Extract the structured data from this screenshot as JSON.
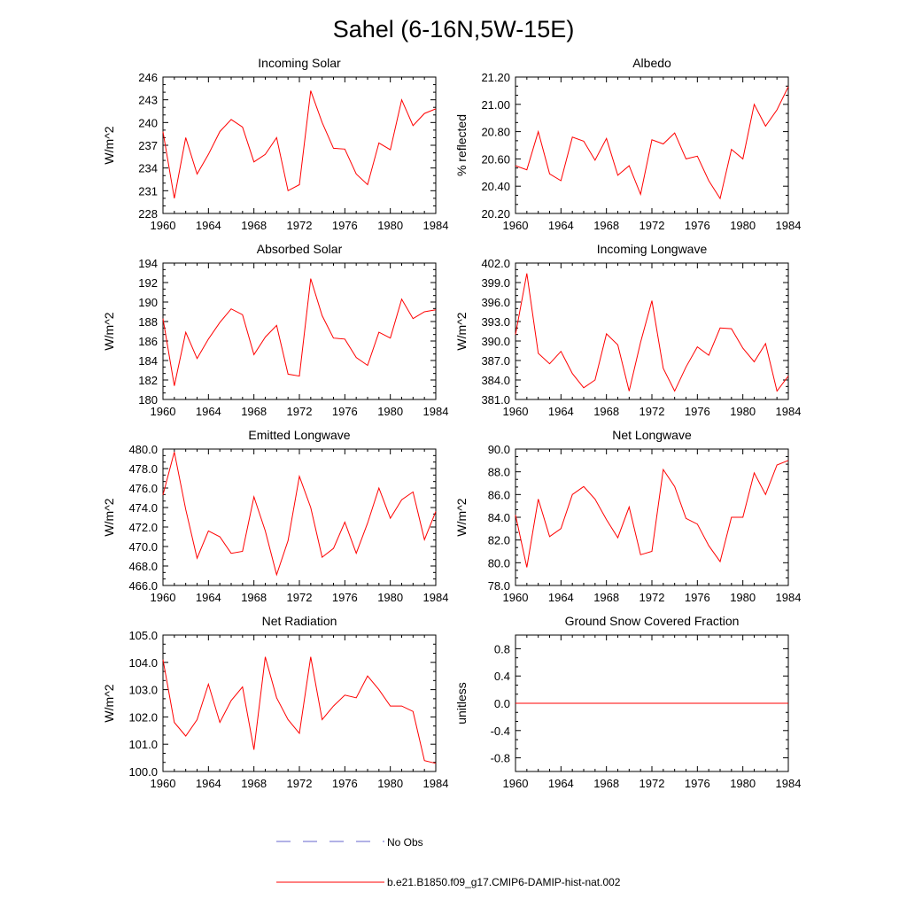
{
  "figure_title": "Sahel (6-16N,5W-15E)",
  "colors": {
    "model": "#ff0000",
    "obs": "#6666cc",
    "axis": "#000000"
  },
  "legend": {
    "obs_label": "No Obs",
    "model_label": "b.e21.B1850.f09_g17.CMIP6-DAMIP-hist-nat.002"
  },
  "chart_data": [
    {
      "type": "line",
      "title": "Incoming Solar",
      "xlabel": "",
      "ylabel": "W/m^2",
      "xlim": [
        1960,
        1984
      ],
      "ylim": [
        228,
        246
      ],
      "xticks": [
        "1960",
        "1964",
        "1968",
        "1972",
        "1976",
        "1980",
        "1984"
      ],
      "yticks": [
        "228",
        "231",
        "234",
        "237",
        "240",
        "243",
        "246"
      ],
      "x": [
        1960,
        1961,
        1962,
        1963,
        1964,
        1965,
        1966,
        1967,
        1968,
        1969,
        1970,
        1971,
        1972,
        1973,
        1974,
        1975,
        1976,
        1977,
        1978,
        1979,
        1980,
        1981,
        1982,
        1983,
        1984
      ],
      "series": [
        {
          "name": "b.e21.B1850.f09_g17.CMIP6-DAMIP-hist-nat.002",
          "values": [
            238.8,
            230.0,
            238.0,
            233.2,
            235.8,
            238.8,
            240.4,
            239.4,
            234.8,
            235.8,
            238.0,
            231.0,
            231.8,
            244.2,
            240.0,
            236.6,
            236.5,
            233.2,
            231.8,
            237.3,
            236.4,
            243.0,
            239.6,
            241.2,
            241.8
          ]
        }
      ]
    },
    {
      "type": "line",
      "title": "Albedo",
      "xlabel": "",
      "ylabel": "% reflected",
      "xlim": [
        1960,
        1984
      ],
      "ylim": [
        20.2,
        21.2
      ],
      "xticks": [
        "1960",
        "1964",
        "1968",
        "1972",
        "1976",
        "1980",
        "1984"
      ],
      "yticks": [
        "20.20",
        "20.40",
        "20.60",
        "20.80",
        "21.00",
        "21.20"
      ],
      "x": [
        1960,
        1961,
        1962,
        1963,
        1964,
        1965,
        1966,
        1967,
        1968,
        1969,
        1970,
        1971,
        1972,
        1973,
        1974,
        1975,
        1976,
        1977,
        1978,
        1979,
        1980,
        1981,
        1982,
        1983,
        1984
      ],
      "series": [
        {
          "name": "b.e21.B1850.f09_g17.CMIP6-DAMIP-hist-nat.002",
          "values": [
            20.55,
            20.52,
            20.8,
            20.49,
            20.44,
            20.76,
            20.73,
            20.59,
            20.75,
            20.48,
            20.55,
            20.34,
            20.74,
            20.71,
            20.79,
            20.6,
            20.62,
            20.44,
            20.31,
            20.67,
            20.6,
            21.0,
            20.84,
            20.96,
            21.13
          ]
        }
      ]
    },
    {
      "type": "line",
      "title": "Absorbed Solar",
      "xlabel": "",
      "ylabel": "W/m^2",
      "xlim": [
        1960,
        1984
      ],
      "ylim": [
        180,
        194
      ],
      "xticks": [
        "1960",
        "1964",
        "1968",
        "1972",
        "1976",
        "1980",
        "1984"
      ],
      "yticks": [
        "180",
        "182",
        "184",
        "186",
        "188",
        "190",
        "192",
        "194"
      ],
      "x": [
        1960,
        1961,
        1962,
        1963,
        1964,
        1965,
        1966,
        1967,
        1968,
        1969,
        1970,
        1971,
        1972,
        1973,
        1974,
        1975,
        1976,
        1977,
        1978,
        1979,
        1980,
        1981,
        1982,
        1983,
        1984
      ],
      "series": [
        {
          "name": "b.e21.B1850.f09_g17.CMIP6-DAMIP-hist-nat.002",
          "values": [
            188.3,
            181.4,
            186.9,
            184.2,
            186.2,
            187.9,
            189.3,
            188.7,
            184.6,
            186.4,
            187.6,
            182.6,
            182.4,
            192.4,
            188.6,
            186.3,
            186.2,
            184.3,
            183.5,
            186.9,
            186.3,
            190.3,
            188.3,
            189.0,
            189.2
          ]
        }
      ]
    },
    {
      "type": "line",
      "title": "Incoming Longwave",
      "xlabel": "",
      "ylabel": "W/m^2",
      "xlim": [
        1960,
        1984
      ],
      "ylim": [
        381,
        402
      ],
      "xticks": [
        "1960",
        "1964",
        "1968",
        "1972",
        "1976",
        "1980",
        "1984"
      ],
      "yticks": [
        "381.0",
        "384.0",
        "387.0",
        "390.0",
        "393.0",
        "396.0",
        "399.0",
        "402.0"
      ],
      "x": [
        1960,
        1961,
        1962,
        1963,
        1964,
        1965,
        1966,
        1967,
        1968,
        1969,
        1970,
        1971,
        1972,
        1973,
        1974,
        1975,
        1976,
        1977,
        1978,
        1979,
        1980,
        1981,
        1982,
        1983,
        1984
      ],
      "series": [
        {
          "name": "b.e21.B1850.f09_g17.CMIP6-DAMIP-hist-nat.002",
          "values": [
            391.0,
            400.4,
            388.1,
            386.5,
            388.4,
            385.0,
            382.8,
            384.0,
            391.1,
            389.4,
            382.3,
            389.8,
            396.2,
            385.8,
            382.3,
            386.0,
            389.1,
            387.8,
            392.0,
            391.9,
            388.9,
            386.8,
            389.6,
            382.3,
            384.6
          ]
        }
      ]
    },
    {
      "type": "line",
      "title": "Emitted Longwave",
      "xlabel": "",
      "ylabel": "W/m^2",
      "xlim": [
        1960,
        1984
      ],
      "ylim": [
        466,
        480
      ],
      "xticks": [
        "1960",
        "1964",
        "1968",
        "1972",
        "1976",
        "1980",
        "1984"
      ],
      "yticks": [
        "466.0",
        "468.0",
        "470.0",
        "472.0",
        "474.0",
        "476.0",
        "478.0",
        "480.0"
      ],
      "x": [
        1960,
        1961,
        1962,
        1963,
        1964,
        1965,
        1966,
        1967,
        1968,
        1969,
        1970,
        1971,
        1972,
        1973,
        1974,
        1975,
        1976,
        1977,
        1978,
        1979,
        1980,
        1981,
        1982,
        1983,
        1984
      ],
      "series": [
        {
          "name": "b.e21.B1850.f09_g17.CMIP6-DAMIP-hist-nat.002",
          "values": [
            475.3,
            479.7,
            473.8,
            468.8,
            471.6,
            471.0,
            469.3,
            469.5,
            475.1,
            471.6,
            467.1,
            470.6,
            477.2,
            474.0,
            468.9,
            469.8,
            472.5,
            469.3,
            472.4,
            476.0,
            472.9,
            474.8,
            475.6,
            470.7,
            473.6
          ]
        }
      ]
    },
    {
      "type": "line",
      "title": "Net Longwave",
      "xlabel": "",
      "ylabel": "W/m^2",
      "xlim": [
        1960,
        1984
      ],
      "ylim": [
        78,
        90
      ],
      "xticks": [
        "1960",
        "1964",
        "1968",
        "1972",
        "1976",
        "1980",
        "1984"
      ],
      "yticks": [
        "78.0",
        "80.0",
        "82.0",
        "84.0",
        "86.0",
        "88.0",
        "90.0"
      ],
      "x": [
        1960,
        1961,
        1962,
        1963,
        1964,
        1965,
        1966,
        1967,
        1968,
        1969,
        1970,
        1971,
        1972,
        1973,
        1974,
        1975,
        1976,
        1977,
        1978,
        1979,
        1980,
        1981,
        1982,
        1983,
        1984
      ],
      "series": [
        {
          "name": "b.e21.B1850.f09_g17.CMIP6-DAMIP-hist-nat.002",
          "values": [
            84.2,
            79.6,
            85.6,
            82.3,
            83.0,
            86.0,
            86.7,
            85.6,
            83.8,
            82.2,
            84.9,
            80.7,
            81.0,
            88.2,
            86.7,
            83.9,
            83.4,
            81.5,
            80.1,
            84.0,
            84.0,
            87.9,
            86.0,
            88.6,
            89.0
          ]
        }
      ]
    },
    {
      "type": "line",
      "title": "Net Radiation",
      "xlabel": "",
      "ylabel": "W/m^2",
      "xlim": [
        1960,
        1984
      ],
      "ylim": [
        100,
        105
      ],
      "xticks": [
        "1960",
        "1964",
        "1968",
        "1972",
        "1976",
        "1980",
        "1984"
      ],
      "yticks": [
        "100.0",
        "101.0",
        "102.0",
        "103.0",
        "104.0",
        "105.0"
      ],
      "x": [
        1960,
        1961,
        1962,
        1963,
        1964,
        1965,
        1966,
        1967,
        1968,
        1969,
        1970,
        1971,
        1972,
        1973,
        1974,
        1975,
        1976,
        1977,
        1978,
        1979,
        1980,
        1981,
        1982,
        1983,
        1984
      ],
      "series": [
        {
          "name": "b.e21.B1850.f09_g17.CMIP6-DAMIP-hist-nat.002",
          "values": [
            104.1,
            101.8,
            101.3,
            101.9,
            103.2,
            101.8,
            102.6,
            103.1,
            100.8,
            104.2,
            102.7,
            101.9,
            101.4,
            104.2,
            101.9,
            102.4,
            102.8,
            102.7,
            103.5,
            103.0,
            102.4,
            102.4,
            102.2,
            100.4,
            100.3
          ]
        }
      ]
    },
    {
      "type": "line",
      "title": "Ground Snow Covered Fraction",
      "xlabel": "",
      "ylabel": "unitless",
      "xlim": [
        1960,
        1984
      ],
      "ylim": [
        -1.0,
        1.0
      ],
      "xticks": [
        "1960",
        "1964",
        "1968",
        "1972",
        "1976",
        "1980",
        "1984"
      ],
      "yticks": [
        "-0.8",
        "-0.4",
        "0.0",
        "0.4",
        "0.8"
      ],
      "ytick_values": [
        -0.8,
        -0.4,
        0.0,
        0.4,
        0.8
      ],
      "x": [
        1960,
        1961,
        1962,
        1963,
        1964,
        1965,
        1966,
        1967,
        1968,
        1969,
        1970,
        1971,
        1972,
        1973,
        1974,
        1975,
        1976,
        1977,
        1978,
        1979,
        1980,
        1981,
        1982,
        1983,
        1984
      ],
      "series": [
        {
          "name": "b.e21.B1850.f09_g17.CMIP6-DAMIP-hist-nat.002",
          "values": [
            0,
            0,
            0,
            0,
            0,
            0,
            0,
            0,
            0,
            0,
            0,
            0,
            0,
            0,
            0,
            0,
            0,
            0,
            0,
            0,
            0,
            0,
            0,
            0,
            0
          ]
        }
      ]
    }
  ]
}
